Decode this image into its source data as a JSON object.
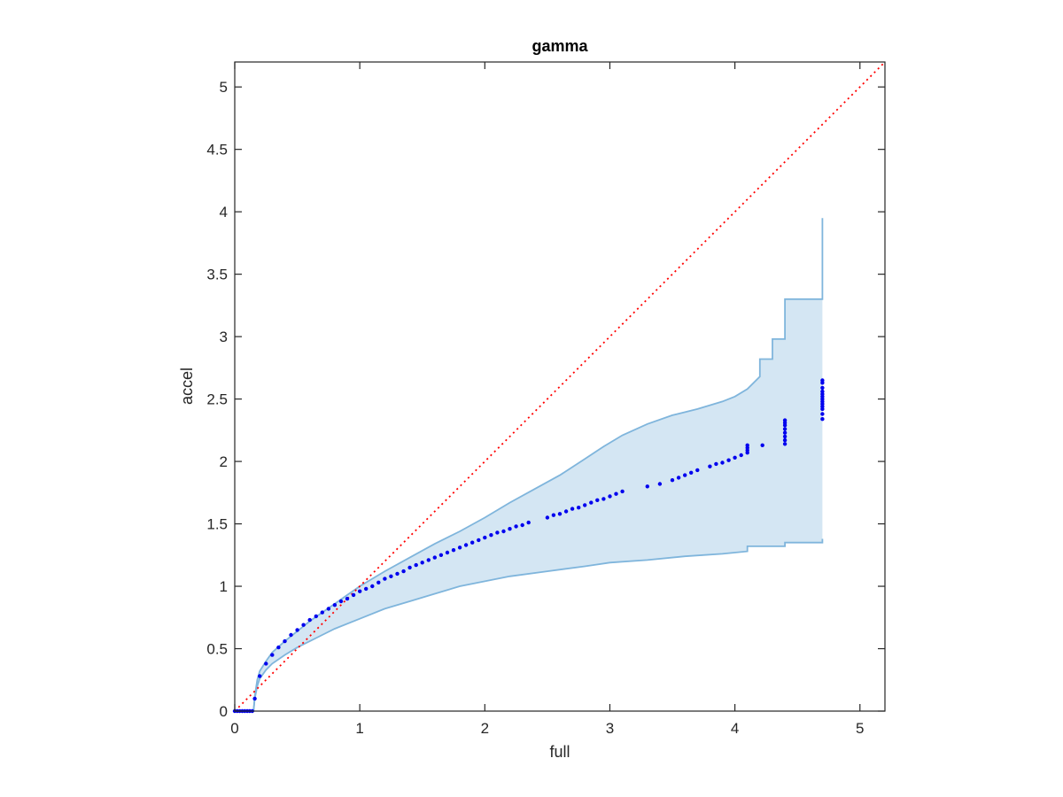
{
  "chart_data": {
    "type": "scatter",
    "title": "gamma",
    "xlabel": "full",
    "ylabel": "accel",
    "xlim": [
      0,
      5.2
    ],
    "ylim": [
      0,
      5.2
    ],
    "xticks": [
      "0",
      "1",
      "2",
      "3",
      "4",
      "5"
    ],
    "yticks": [
      "0",
      "0.5",
      "1",
      "1.5",
      "2",
      "2.5",
      "3",
      "3.5",
      "4",
      "4.5",
      "5"
    ],
    "grid": false,
    "legend": "none",
    "colors": {
      "points": "#0000ee",
      "band_fill": "#d4e6f3",
      "band_edge": "#7fb5dc",
      "reference_line": "#ff0000",
      "axes": "#262626"
    },
    "reference_line": {
      "style": "dotted",
      "from": [
        0,
        0
      ],
      "to": [
        5.2,
        5.2
      ]
    },
    "band": {
      "upper": [
        [
          0.15,
          0.0
        ],
        [
          0.16,
          0.12
        ],
        [
          0.18,
          0.25
        ],
        [
          0.2,
          0.32
        ],
        [
          0.25,
          0.4
        ],
        [
          0.3,
          0.47
        ],
        [
          0.4,
          0.56
        ],
        [
          0.5,
          0.64
        ],
        [
          0.6,
          0.72
        ],
        [
          0.7,
          0.79
        ],
        [
          0.8,
          0.86
        ],
        [
          0.9,
          0.93
        ],
        [
          1.0,
          1.0
        ],
        [
          1.2,
          1.12
        ],
        [
          1.4,
          1.23
        ],
        [
          1.6,
          1.34
        ],
        [
          1.8,
          1.44
        ],
        [
          2.0,
          1.55
        ],
        [
          2.2,
          1.67
        ],
        [
          2.4,
          1.78
        ],
        [
          2.6,
          1.89
        ],
        [
          2.8,
          2.02
        ],
        [
          2.95,
          2.12
        ],
        [
          3.1,
          2.21
        ],
        [
          3.3,
          2.3
        ],
        [
          3.5,
          2.37
        ],
        [
          3.7,
          2.42
        ],
        [
          3.8,
          2.45
        ],
        [
          3.9,
          2.48
        ],
        [
          4.0,
          2.52
        ],
        [
          4.1,
          2.58
        ],
        [
          4.2,
          2.68
        ],
        [
          4.2,
          2.82
        ],
        [
          4.3,
          2.82
        ],
        [
          4.3,
          2.98
        ],
        [
          4.4,
          2.98
        ],
        [
          4.4,
          3.3
        ],
        [
          4.7,
          3.3
        ],
        [
          4.7,
          3.95
        ]
      ],
      "lower": [
        [
          0.15,
          0.0
        ],
        [
          0.16,
          0.1
        ],
        [
          0.18,
          0.2
        ],
        [
          0.2,
          0.26
        ],
        [
          0.25,
          0.33
        ],
        [
          0.3,
          0.38
        ],
        [
          0.4,
          0.45
        ],
        [
          0.5,
          0.51
        ],
        [
          0.6,
          0.56
        ],
        [
          0.7,
          0.61
        ],
        [
          0.8,
          0.66
        ],
        [
          1.0,
          0.74
        ],
        [
          1.2,
          0.82
        ],
        [
          1.4,
          0.88
        ],
        [
          1.6,
          0.94
        ],
        [
          1.8,
          1.0
        ],
        [
          2.0,
          1.04
        ],
        [
          2.2,
          1.08
        ],
        [
          2.5,
          1.12
        ],
        [
          2.8,
          1.16
        ],
        [
          3.0,
          1.19
        ],
        [
          3.3,
          1.21
        ],
        [
          3.6,
          1.24
        ],
        [
          3.9,
          1.26
        ],
        [
          4.1,
          1.28
        ],
        [
          4.1,
          1.32
        ],
        [
          4.4,
          1.32
        ],
        [
          4.4,
          1.35
        ],
        [
          4.7,
          1.35
        ],
        [
          4.7,
          1.38
        ]
      ]
    },
    "series": [
      {
        "x": [
          0.0,
          0.02,
          0.04,
          0.06,
          0.08,
          0.1,
          0.12,
          0.14,
          0.16,
          0.2,
          0.25,
          0.3,
          0.35,
          0.4,
          0.45,
          0.5,
          0.55,
          0.6,
          0.65,
          0.7,
          0.75,
          0.8,
          0.85,
          0.9,
          0.95,
          1.0,
          1.05,
          1.1,
          1.15,
          1.2,
          1.25,
          1.3,
          1.35,
          1.4,
          1.45,
          1.5,
          1.55,
          1.6,
          1.65,
          1.7,
          1.75,
          1.8,
          1.85,
          1.9,
          1.95,
          2.0,
          2.05,
          2.1,
          2.15,
          2.2,
          2.25,
          2.3,
          2.35,
          2.5,
          2.55,
          2.6,
          2.65,
          2.7,
          2.75,
          2.8,
          2.85,
          2.9,
          2.95,
          3.0,
          3.05,
          3.1,
          3.3,
          3.4,
          3.5,
          3.55,
          3.6,
          3.65,
          3.7,
          3.8,
          3.85,
          3.9,
          3.95,
          4.0,
          4.05,
          4.1,
          4.1,
          4.1,
          4.1,
          4.22,
          4.4,
          4.4,
          4.4,
          4.4,
          4.4,
          4.4,
          4.4,
          4.4,
          4.7,
          4.7,
          4.7,
          4.7,
          4.7,
          4.7,
          4.7,
          4.7,
          4.7,
          4.7,
          4.7,
          4.7,
          4.7
        ],
        "y": [
          0.0,
          0.0,
          0.0,
          0.0,
          0.0,
          0.0,
          0.0,
          0.0,
          0.1,
          0.28,
          0.38,
          0.45,
          0.51,
          0.56,
          0.61,
          0.65,
          0.69,
          0.73,
          0.76,
          0.79,
          0.82,
          0.85,
          0.88,
          0.9,
          0.93,
          0.96,
          0.98,
          1.0,
          1.03,
          1.06,
          1.08,
          1.1,
          1.12,
          1.15,
          1.17,
          1.19,
          1.21,
          1.23,
          1.25,
          1.27,
          1.29,
          1.31,
          1.33,
          1.35,
          1.37,
          1.39,
          1.41,
          1.43,
          1.44,
          1.46,
          1.48,
          1.49,
          1.51,
          1.55,
          1.57,
          1.58,
          1.6,
          1.62,
          1.63,
          1.65,
          1.67,
          1.69,
          1.7,
          1.72,
          1.74,
          1.76,
          1.8,
          1.82,
          1.85,
          1.87,
          1.89,
          1.91,
          1.93,
          1.96,
          1.98,
          1.99,
          2.01,
          2.03,
          2.05,
          2.07,
          2.09,
          2.11,
          2.13,
          2.13,
          2.14,
          2.17,
          2.2,
          2.23,
          2.26,
          2.29,
          2.31,
          2.33,
          2.34,
          2.38,
          2.42,
          2.44,
          2.46,
          2.48,
          2.5,
          2.52,
          2.54,
          2.56,
          2.59,
          2.63,
          2.65
        ]
      }
    ]
  }
}
